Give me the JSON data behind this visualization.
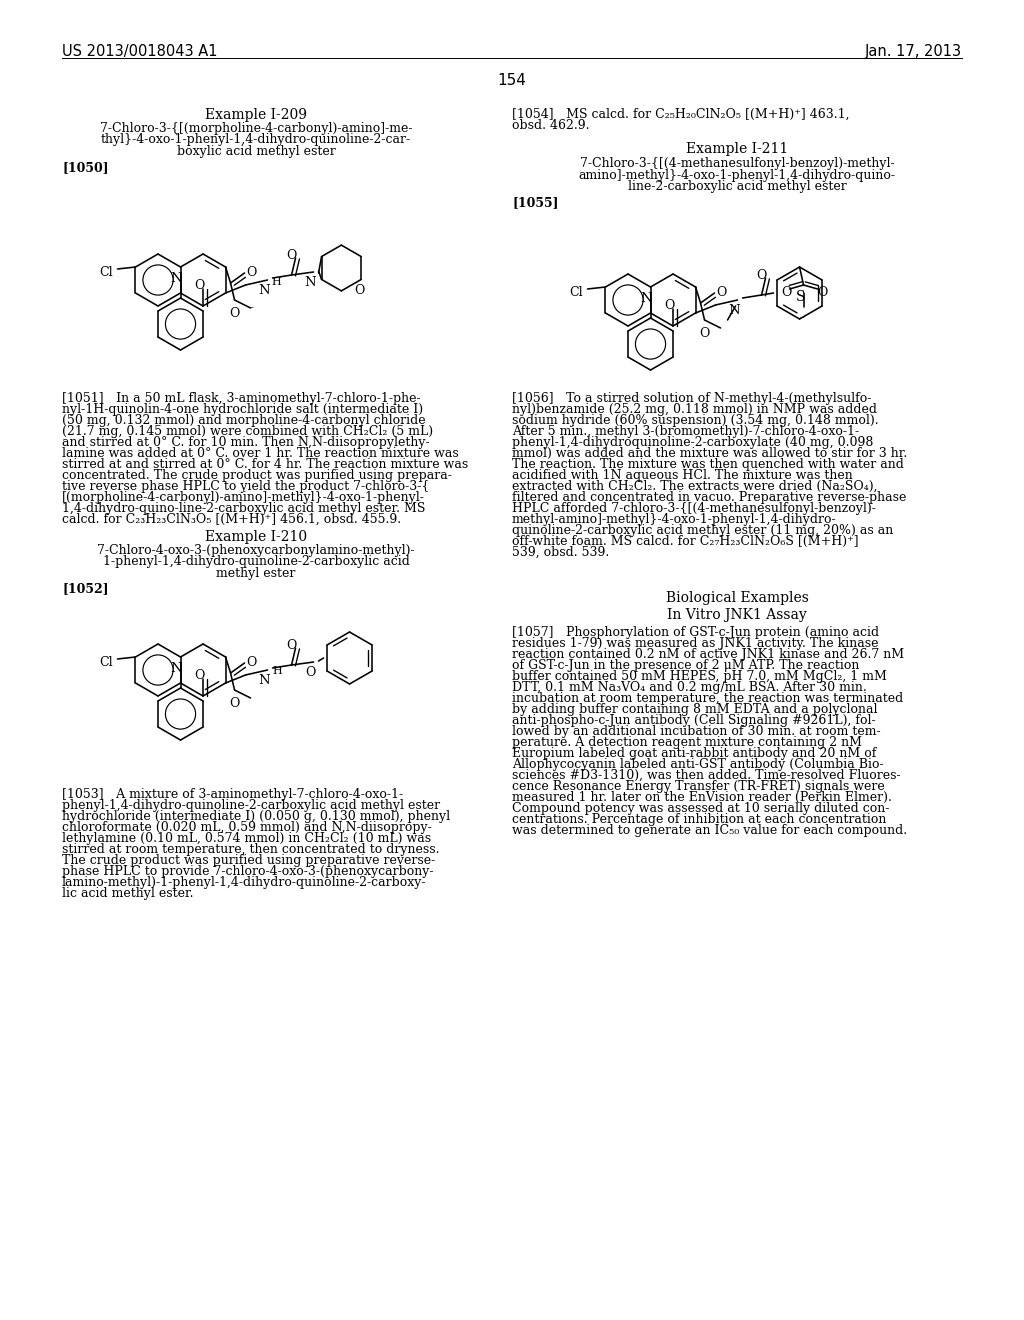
{
  "bg": "#ffffff",
  "header_left": "US 2013/0018043 A1",
  "header_right": "Jan. 17, 2013",
  "page_num": "154",
  "lc_example1_title": "Example I-209",
  "lc_example1_name": [
    "7-Chloro-3-{[(morpholine-4-carbonyl)-amino]-me-",
    "thyl}-4-oxo-1-phenyl-1,4-dihydro-quinoline-2-car-",
    "boxylic acid methyl ester"
  ],
  "lc_label1050": "[1050]",
  "lc_para1051": "[1051] In a 50 mL flask, 3-aminomethyl-7-chloro-1-phe-\nnyl-1H-quinolin-4-one hydrochloride salt (intermediate I)\n(50 mg, 0.132 mmol) and morpholine-4-carbonyl chloride\n(21.7 mg, 0.145 mmol) were combined with CH₂Cl₂ (5 mL)\nand stirred at 0° C. for 10 min. Then N,N-diisopropylethy-\nlamine was added at 0° C. over 1 hr. The reaction mixture was\nstirred at and stirred at 0° C. for 4 hr. The reaction mixture was\nconcentrated. The crude product was purified using prepara-\ntive reverse phase HPLC to yield the product 7-chloro-3-{\n[(morpholine-4-carbonyl)-amino]-methyl}-4-oxo-1-phenyl-\n1,4-dihydro-quino-line-2-carboxylic acid methyl ester. MS\ncalcd. for C₂₃H₂₃ClN₃O₅ [(M+H)⁺] 456.1, obsd. 455.9.",
  "lc_example2_title": "Example I-210",
  "lc_example2_name": [
    "7-Chloro-4-oxo-3-(phenoxycarbonylamino-methyl)-",
    "1-phenyl-1,4-dihydro-quinoline-2-carboxylic acid",
    "methyl ester"
  ],
  "lc_label1052": "[1052]",
  "lc_para1053": "[1053] A mixture of 3-aminomethyl-7-chloro-4-oxo-1-\nphenyl-1,4-dihydro-quinoline-2-carboxylic acid methyl ester\nhydrochloride (intermediate I) (0.050 g, 0.130 mmol), phenyl\nchloroformate (0.020 mL, 0.59 mmol) and N,N-diisopropy-\nlethylamine (0.10 mL, 0.574 mmol) in CH₂Cl₂ (10 mL) was\nstirred at room temperature, then concentrated to dryness.\nThe crude product was purified using preparative reverse-\nphase HPLC to provide 7-chloro-4-oxo-3-(phenoxycarbony-\nlamino-methyl)-1-phenyl-1,4-dihydro-quinoline-2-carboxy-\nlic acid methyl ester.",
  "rc_para1054": "[1054] MS calcd. for C₂₅H₂₀ClN₂O₅ [(M+H)⁺] 463.1,\nobsd. 462.9.",
  "rc_example3_title": "Example I-211",
  "rc_example3_name": [
    "7-Chloro-3-{[(4-methanesulfonyl-benzoyl)-methyl-",
    "amino]-methyl}-4-oxo-1-phenyl-1,4-dihydro-quino-",
    "line-2-carboxylic acid methyl ester"
  ],
  "rc_label1055": "[1055]",
  "rc_para1056": "[1056] To a stirred solution of N-methyl-4-(methylsulfo-\nnyl)benzamide (25.2 mg, 0.118 mmol) in NMP was added\nsodium hydride (60% suspension) (3.54 mg, 0.148 mmol).\nAfter 5 min., methyl 3-(bromomethyl)-7-chloro-4-oxo-1-\nphenyl-1,4-dihydroquinoline-2-carboxylate (40 mg, 0.098\nmmol) was added and the mixture was allowed to stir for 3 hr.\nThe reaction. The mixture was then quenched with water and\nacidified with 1N aqueous HCl. The mixture was then\nextracted with CH₂Cl₂. The extracts were dried (Na₂SO₄),\nfiltered and concentrated in vacuo. Preparative reverse-phase\nHPLC afforded 7-chloro-3-{[(4-methanesulfonyl-benzoyl)-\nmethyl-amino]-methyl}-4-oxo-1-phenyl-1,4-dihydro-\nquinoline-2-carboxylic acid methyl ester (11 mg, 20%) as an\noff-white foam. MS calcd. for C₂₇H₂₃ClN₂O₆S [(M+H)⁺]\n539, obsd. 539.",
  "rc_bio_title": "Biological Examples",
  "rc_invitro_title": "In Vitro JNK1 Assay",
  "rc_para1057": "[1057] Phosphorylation of GST-c-Jun protein (amino acid\nresidues 1-79) was measured as JNK1 activity. The kinase\nreaction contained 0.2 nM of active JNK1 kinase and 26.7 nM\nof GST-c-Jun in the presence of 2 μM ATP. The reaction\nbuffer contained 50 mM HEPES, pH 7.0, mM MgCl₂, 1 mM\nDTT, 0.1 mM Na₃VO₄ and 0.2 mg/mL BSA. After 30 min.\nincubation at room temperature, the reaction was terminated\nby adding buffer containing 8 mM EDTA and a polyclonal\nanti-phospho-c-Jun antibody (Cell Signaling #9261L), fol-\nlowed by an additional incubation of 30 min. at room tem-\nperature. A detection reagent mixture containing 2 nM\nEuropium labeled goat anti-rabbit antibody and 20 nM of\nAllophycocyanin labeled anti-GST antibody (Columbia Bio-\nsciences #D3-1310), was then added. Time-resolved Fluores-\ncence Resonance Energy Transfer (TR-FRET) signals were\nmeasured 1 hr. later on the EnVision reader (Perkin Elmer).\nCompound potency was assessed at 10 serially diluted con-\ncentrations. Percentage of inhibition at each concentration\nwas determined to generate an IC₅₀ value for each compound."
}
